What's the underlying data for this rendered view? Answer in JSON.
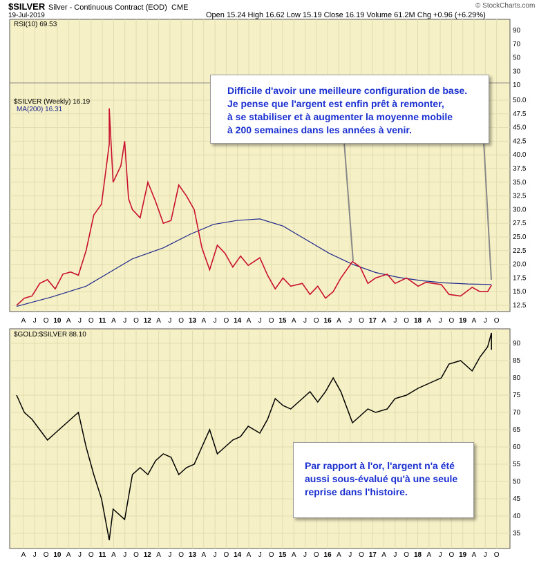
{
  "header": {
    "symbol": "$SILVER",
    "description": "Silver - Continuous Contract (EOD)",
    "exchange": "CME",
    "date": "19-Jul-2019",
    "quote": "Open 15.24  High 16.62  Low 15.19  Close 16.19  Volume 61.2M  Chg +0.96 (+6.29%)",
    "watermark": "© StockCharts.com"
  },
  "rsi": {
    "label": "RSI(10) 69.53",
    "ticks": [
      "90",
      "70",
      "50",
      "30",
      "10"
    ]
  },
  "legend": {
    "silver_label": "$SILVER (Weekly) 16.19",
    "ma_label": "MA(200) 16.31"
  },
  "x_axis_labels": [
    "A",
    "J",
    "O",
    "10",
    "A",
    "J",
    "O",
    "11",
    "A",
    "J",
    "O",
    "12",
    "A",
    "J",
    "O",
    "13",
    "A",
    "J",
    "O",
    "14",
    "A",
    "J",
    "O",
    "15",
    "A",
    "J",
    "O",
    "16",
    "A",
    "J",
    "O",
    "17",
    "A",
    "J",
    "O",
    "18",
    "A",
    "J",
    "O",
    "19",
    "A",
    "J",
    "O"
  ],
  "notes": {
    "top": [
      "Difficile d'avoir une meilleure configuration de base.",
      "Je pense que l'argent est enfin prêt à remonter,",
      "à se stabiliser et à augmenter la moyenne mobile",
      "à 200 semaines dans les années à venir."
    ],
    "bottom": [
      "Par rapport à l'or, l'argent n'a été",
      "aussi sous-évalué qu'à une seule",
      "reprise dans l'histoire."
    ]
  },
  "colors": {
    "panel_bg": "#f6f0c6",
    "price": "#c8102e",
    "ma": "#1f2a8c",
    "ratio": "#000000",
    "note_text": "#1a2fd0"
  },
  "chart_data": [
    {
      "type": "line",
      "name": "price",
      "x_range": [
        "2009-04",
        "2019-10"
      ],
      "ylim": [
        11,
        54
      ],
      "y_ticks": [
        12.5,
        15,
        17.5,
        20,
        22.5,
        25,
        27.5,
        30,
        32.5,
        35,
        37.5,
        40,
        42.5,
        45,
        47.5,
        50
      ],
      "series": [
        {
          "name": "$SILVER (Weekly)",
          "points": [
            [
              "2009-04",
              12.5
            ],
            [
              "2009-06",
              13.8
            ],
            [
              "2009-08",
              14.2
            ],
            [
              "2009-10",
              16.5
            ],
            [
              "2009-12",
              17.2
            ],
            [
              "2010-02",
              15.5
            ],
            [
              "2010-04",
              18.2
            ],
            [
              "2010-06",
              18.6
            ],
            [
              "2010-08",
              18.0
            ],
            [
              "2010-10",
              22.5
            ],
            [
              "2010-12",
              29.0
            ],
            [
              "2011-02",
              31.0
            ],
            [
              "2011-04",
              42.0
            ],
            [
              "2011-04",
              48.5
            ],
            [
              "2011-05",
              35.0
            ],
            [
              "2011-07",
              38.0
            ],
            [
              "2011-08",
              42.5
            ],
            [
              "2011-09",
              32.0
            ],
            [
              "2011-10",
              30.0
            ],
            [
              "2011-12",
              28.5
            ],
            [
              "2012-02",
              35.0
            ],
            [
              "2012-04",
              31.5
            ],
            [
              "2012-06",
              27.5
            ],
            [
              "2012-08",
              28.0
            ],
            [
              "2012-10",
              34.5
            ],
            [
              "2012-12",
              32.5
            ],
            [
              "2013-02",
              30.0
            ],
            [
              "2013-04",
              23.0
            ],
            [
              "2013-06",
              19.0
            ],
            [
              "2013-08",
              23.5
            ],
            [
              "2013-10",
              22.0
            ],
            [
              "2013-12",
              19.5
            ],
            [
              "2014-02",
              21.5
            ],
            [
              "2014-04",
              19.8
            ],
            [
              "2014-07",
              21.2
            ],
            [
              "2014-09",
              18.0
            ],
            [
              "2014-11",
              15.5
            ],
            [
              "2015-01",
              17.5
            ],
            [
              "2015-03",
              16.0
            ],
            [
              "2015-06",
              16.5
            ],
            [
              "2015-08",
              14.5
            ],
            [
              "2015-10",
              16.0
            ],
            [
              "2015-12",
              13.8
            ],
            [
              "2016-02",
              15.0
            ],
            [
              "2016-04",
              17.5
            ],
            [
              "2016-07",
              20.5
            ],
            [
              "2016-09",
              19.5
            ],
            [
              "2016-11",
              16.5
            ],
            [
              "2017-01",
              17.5
            ],
            [
              "2017-04",
              18.2
            ],
            [
              "2017-06",
              16.5
            ],
            [
              "2017-09",
              17.5
            ],
            [
              "2017-12",
              16.0
            ],
            [
              "2018-02",
              16.7
            ],
            [
              "2018-04",
              16.5
            ],
            [
              "2018-06",
              16.3
            ],
            [
              "2018-08",
              14.5
            ],
            [
              "2018-11",
              14.2
            ],
            [
              "2019-02",
              15.8
            ],
            [
              "2019-04",
              15.0
            ],
            [
              "2019-06",
              15.0
            ],
            [
              "2019-07",
              16.19
            ]
          ]
        },
        {
          "name": "MA(200)",
          "points": [
            [
              "2009-04",
              12.3
            ],
            [
              "2010-01",
              14.0
            ],
            [
              "2010-10",
              16.0
            ],
            [
              "2011-04",
              18.5
            ],
            [
              "2011-10",
              21.0
            ],
            [
              "2012-06",
              23.0
            ],
            [
              "2013-01",
              25.5
            ],
            [
              "2013-07",
              27.3
            ],
            [
              "2014-01",
              28.0
            ],
            [
              "2014-07",
              28.3
            ],
            [
              "2015-01",
              27.0
            ],
            [
              "2015-07",
              24.5
            ],
            [
              "2016-01",
              22.0
            ],
            [
              "2016-07",
              20.0
            ],
            [
              "2017-01",
              18.5
            ],
            [
              "2017-07",
              17.6
            ],
            [
              "2018-01",
              17.0
            ],
            [
              "2018-07",
              16.6
            ],
            [
              "2019-01",
              16.4
            ],
            [
              "2019-07",
              16.31
            ]
          ]
        }
      ]
    },
    {
      "type": "line",
      "name": "ratio",
      "title": "$GOLD:$SILVER 88.10",
      "x_range": [
        "2009-04",
        "2019-10"
      ],
      "ylim": [
        32,
        95
      ],
      "y_ticks": [
        35,
        40,
        45,
        50,
        55,
        60,
        65,
        70,
        75,
        80,
        85,
        90
      ],
      "series": [
        {
          "name": "$GOLD:$SILVER",
          "points": [
            [
              "2009-04",
              75.0
            ],
            [
              "2009-06",
              70.0
            ],
            [
              "2009-08",
              68.0
            ],
            [
              "2009-10",
              65.0
            ],
            [
              "2009-12",
              62.0
            ],
            [
              "2010-02",
              64.0
            ],
            [
              "2010-04",
              66.0
            ],
            [
              "2010-06",
              68.0
            ],
            [
              "2010-08",
              70.0
            ],
            [
              "2010-10",
              60.0
            ],
            [
              "2010-12",
              52.0
            ],
            [
              "2011-02",
              45.0
            ],
            [
              "2011-04",
              33.0
            ],
            [
              "2011-05",
              42.0
            ],
            [
              "2011-08",
              39.0
            ],
            [
              "2011-10",
              52.0
            ],
            [
              "2011-12",
              54.0
            ],
            [
              "2012-02",
              52.0
            ],
            [
              "2012-04",
              56.0
            ],
            [
              "2012-06",
              58.0
            ],
            [
              "2012-08",
              57.0
            ],
            [
              "2012-10",
              52.0
            ],
            [
              "2012-12",
              54.0
            ],
            [
              "2013-02",
              55.0
            ],
            [
              "2013-04",
              60.0
            ],
            [
              "2013-06",
              65.0
            ],
            [
              "2013-08",
              58.0
            ],
            [
              "2013-10",
              60.0
            ],
            [
              "2013-12",
              62.0
            ],
            [
              "2014-02",
              63.0
            ],
            [
              "2014-04",
              66.0
            ],
            [
              "2014-07",
              64.0
            ],
            [
              "2014-09",
              68.0
            ],
            [
              "2014-11",
              74.0
            ],
            [
              "2015-01",
              72.0
            ],
            [
              "2015-03",
              71.0
            ],
            [
              "2015-06",
              74.0
            ],
            [
              "2015-08",
              76.0
            ],
            [
              "2015-10",
              73.0
            ],
            [
              "2015-12",
              76.0
            ],
            [
              "2016-02",
              80.0
            ],
            [
              "2016-04",
              76.0
            ],
            [
              "2016-07",
              67.0
            ],
            [
              "2016-09",
              69.0
            ],
            [
              "2016-11",
              71.0
            ],
            [
              "2017-01",
              70.0
            ],
            [
              "2017-04",
              71.0
            ],
            [
              "2017-06",
              74.0
            ],
            [
              "2017-09",
              75.0
            ],
            [
              "2017-12",
              77.0
            ],
            [
              "2018-02",
              78.0
            ],
            [
              "2018-04",
              79.0
            ],
            [
              "2018-06",
              80.0
            ],
            [
              "2018-08",
              84.0
            ],
            [
              "2018-11",
              85.0
            ],
            [
              "2019-02",
              82.0
            ],
            [
              "2019-04",
              86.0
            ],
            [
              "2019-06",
              89.0
            ],
            [
              "2019-07",
              93.0
            ],
            [
              "2019-07",
              88.1
            ]
          ]
        }
      ]
    }
  ]
}
